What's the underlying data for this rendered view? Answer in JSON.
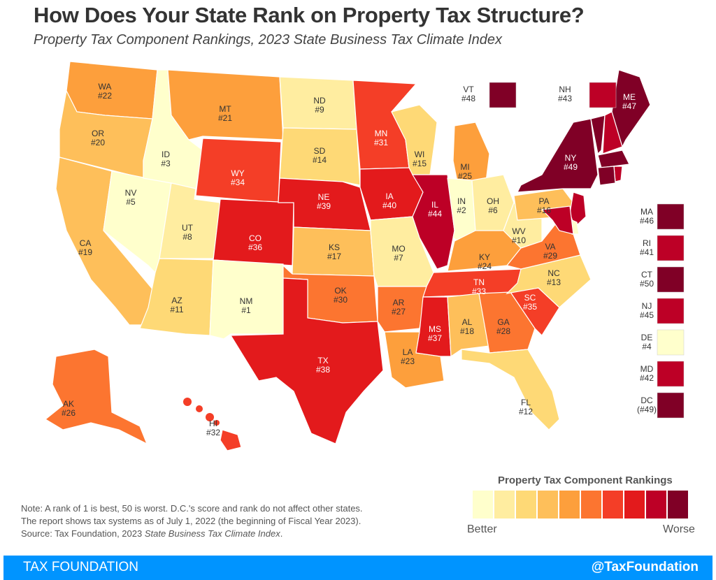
{
  "title": "How Does Your State Rank on Property Tax Structure?",
  "subtitle": "Property Tax Component Rankings, 2023 State Business Tax Climate Index",
  "legend": {
    "title": "Property Tax Component Rankings",
    "low_label": "Better",
    "high_label": "Worse",
    "colors": [
      "#ffffcc",
      "#ffeda0",
      "#fed976",
      "#febf5a",
      "#fd9f3c",
      "#fc7530",
      "#f43e27",
      "#e31a1c",
      "#bd0026",
      "#800026"
    ]
  },
  "states": [
    {
      "abbr": "WA",
      "rank": "#22",
      "value": 22
    },
    {
      "abbr": "OR",
      "rank": "#20",
      "value": 20
    },
    {
      "abbr": "CA",
      "rank": "#19",
      "value": 19
    },
    {
      "abbr": "NV",
      "rank": "#5",
      "value": 5
    },
    {
      "abbr": "ID",
      "rank": "#3",
      "value": 3
    },
    {
      "abbr": "MT",
      "rank": "#21",
      "value": 21
    },
    {
      "abbr": "WY",
      "rank": "#34",
      "value": 34
    },
    {
      "abbr": "UT",
      "rank": "#8",
      "value": 8
    },
    {
      "abbr": "AZ",
      "rank": "#11",
      "value": 11
    },
    {
      "abbr": "CO",
      "rank": "#36",
      "value": 36
    },
    {
      "abbr": "NM",
      "rank": "#1",
      "value": 1
    },
    {
      "abbr": "ND",
      "rank": "#9",
      "value": 9
    },
    {
      "abbr": "SD",
      "rank": "#14",
      "value": 14
    },
    {
      "abbr": "NE",
      "rank": "#39",
      "value": 39
    },
    {
      "abbr": "KS",
      "rank": "#17",
      "value": 17
    },
    {
      "abbr": "OK",
      "rank": "#30",
      "value": 30
    },
    {
      "abbr": "TX",
      "rank": "#38",
      "value": 38
    },
    {
      "abbr": "MN",
      "rank": "#31",
      "value": 31
    },
    {
      "abbr": "IA",
      "rank": "#40",
      "value": 40
    },
    {
      "abbr": "MO",
      "rank": "#7",
      "value": 7
    },
    {
      "abbr": "AR",
      "rank": "#27",
      "value": 27
    },
    {
      "abbr": "LA",
      "rank": "#23",
      "value": 23
    },
    {
      "abbr": "WI",
      "rank": "#15",
      "value": 15
    },
    {
      "abbr": "IL",
      "rank": "#44",
      "value": 44
    },
    {
      "abbr": "MI",
      "rank": "#25",
      "value": 25
    },
    {
      "abbr": "IN",
      "rank": "#2",
      "value": 2
    },
    {
      "abbr": "OH",
      "rank": "#6",
      "value": 6
    },
    {
      "abbr": "KY",
      "rank": "#24",
      "value": 24
    },
    {
      "abbr": "TN",
      "rank": "#33",
      "value": 33
    },
    {
      "abbr": "MS",
      "rank": "#37",
      "value": 37
    },
    {
      "abbr": "AL",
      "rank": "#18",
      "value": 18
    },
    {
      "abbr": "GA",
      "rank": "#28",
      "value": 28
    },
    {
      "abbr": "FL",
      "rank": "#12",
      "value": 12
    },
    {
      "abbr": "SC",
      "rank": "#35",
      "value": 35
    },
    {
      "abbr": "NC",
      "rank": "#13",
      "value": 13
    },
    {
      "abbr": "VA",
      "rank": "#29",
      "value": 29
    },
    {
      "abbr": "WV",
      "rank": "#10",
      "value": 10
    },
    {
      "abbr": "PA",
      "rank": "#16",
      "value": 16
    },
    {
      "abbr": "NY",
      "rank": "#49",
      "value": 49
    },
    {
      "abbr": "ME",
      "rank": "#47",
      "value": 47
    },
    {
      "abbr": "AK",
      "rank": "#26",
      "value": 26
    },
    {
      "abbr": "HI",
      "rank": "#32",
      "value": 32
    }
  ],
  "callouts": [
    {
      "abbr": "VT",
      "rank": "#48",
      "value": 48
    },
    {
      "abbr": "NH",
      "rank": "#43",
      "value": 43
    },
    {
      "abbr": "MA",
      "rank": "#46",
      "value": 46
    },
    {
      "abbr": "RI",
      "rank": "#41",
      "value": 41
    },
    {
      "abbr": "CT",
      "rank": "#50",
      "value": 50
    },
    {
      "abbr": "NJ",
      "rank": "#45",
      "value": 45
    },
    {
      "abbr": "DE",
      "rank": "#4",
      "value": 4
    },
    {
      "abbr": "MD",
      "rank": "#42",
      "value": 42
    },
    {
      "abbr": "DC",
      "rank": "(#49)",
      "value": 49
    }
  ],
  "note": {
    "line1": "Note: A rank of 1 is best, 50 is worst.  D.C.'s score and rank do not affect other states.",
    "line2": "The report shows tax systems as of July 1, 2022 (the beginning of Fiscal Year 2023).",
    "source_prefix": "Source: Tax Foundation, 2023 ",
    "source_italic": "State Business Tax Climate Index",
    "source_suffix": "."
  },
  "footer": {
    "brand": "TAX FOUNDATION",
    "handle": "@TaxFoundation"
  }
}
